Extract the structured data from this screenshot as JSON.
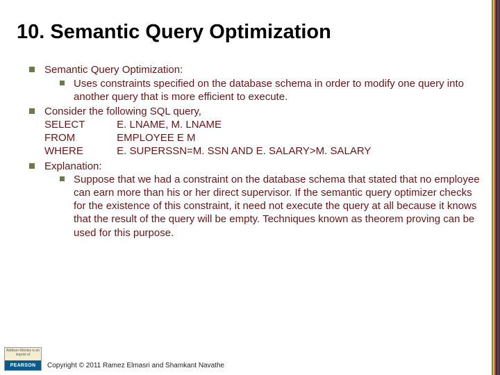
{
  "slide": {
    "title": "10. Semantic Query Optimization",
    "bullets": {
      "b1": {
        "heading": "Semantic Query Optimization:",
        "sub": "Uses constraints specified on the database schema in order to modify one query into another query that is more efficient to execute."
      },
      "b2": {
        "intro": "Consider the following SQL query,",
        "select_kw": "SELECT",
        "select_val": "E. LNAME, M. LNAME",
        "from_kw": "FROM",
        "from_val": "EMPLOYEE E M",
        "where_kw": "WHERE",
        "where_val": "E. SUPERSSN=M. SSN AND E. SALARY>M. SALARY"
      },
      "b3": {
        "heading": "Explanation:",
        "sub": "Suppose that we had a constraint on the database schema that stated that no employee can earn more than his or her direct supervisor. If the semantic query optimizer checks for the existence of this constraint, it need not execute the query at all because it knows that the result of the query will be empty. Techniques known as theorem proving can be used for this purpose."
      }
    }
  },
  "footer": {
    "logo_top": "Addison-Wesley is an imprint of",
    "logo_brand": "PEARSON",
    "copyright": "Copyright © 2011 Ramez Elmasri and Shamkant Navathe"
  },
  "colors": {
    "bullet_text": "#651616",
    "bullet_square": "#6a7a4a",
    "title": "#000000",
    "background": "#ffffff"
  }
}
